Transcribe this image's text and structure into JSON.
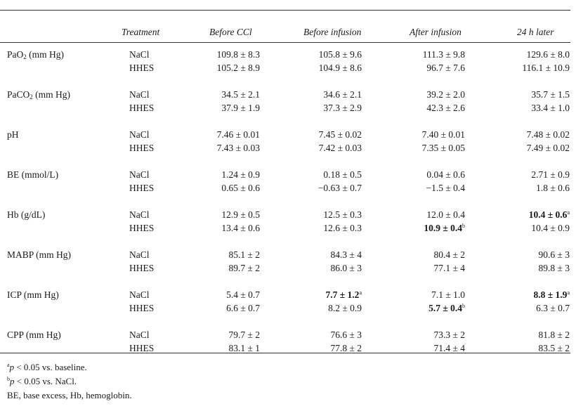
{
  "headers": {
    "treatment": "Treatment",
    "col1": "Before CCl",
    "col2": "Before infusion",
    "col3": "After infusion",
    "col4": "24 h later"
  },
  "rows": [
    {
      "param": "PaO",
      "sub": "2",
      "unit": " (mm Hg)",
      "nacl": [
        {
          "v": "109.8 ± 8.3"
        },
        {
          "v": "105.8 ± 9.6"
        },
        {
          "v": "111.3 ± 9.8"
        },
        {
          "v": "129.6 ± 8.0"
        }
      ],
      "hhes": [
        {
          "v": "105.2 ± 8.9"
        },
        {
          "v": "104.9 ± 8.6"
        },
        {
          "v": "96.7 ± 7.6"
        },
        {
          "v": "116.1 ± 10.9"
        }
      ]
    },
    {
      "param": "PaCO",
      "sub": "2",
      "unit": " (mm Hg)",
      "nacl": [
        {
          "v": "34.5 ± 2.1"
        },
        {
          "v": "34.6 ± 2.1"
        },
        {
          "v": "39.2 ± 2.0"
        },
        {
          "v": "35.7 ± 1.5"
        }
      ],
      "hhes": [
        {
          "v": "37.9 ± 1.9"
        },
        {
          "v": "37.3 ± 2.9"
        },
        {
          "v": "42.3 ± 2.6"
        },
        {
          "v": "33.4 ± 1.0"
        }
      ]
    },
    {
      "param": "pH",
      "sub": "",
      "unit": "",
      "nacl": [
        {
          "v": "7.46 ± 0.01"
        },
        {
          "v": "7.45 ± 0.02"
        },
        {
          "v": "7.40 ± 0.01"
        },
        {
          "v": "7.48 ± 0.02"
        }
      ],
      "hhes": [
        {
          "v": "7.43 ± 0.03"
        },
        {
          "v": "7.42 ± 0.03"
        },
        {
          "v": "7.35 ± 0.05"
        },
        {
          "v": "7.49 ± 0.02"
        }
      ]
    },
    {
      "param": "BE (mmol/L)",
      "sub": "",
      "unit": "",
      "nacl": [
        {
          "v": "1.24 ± 0.9"
        },
        {
          "v": "0.18 ± 0.5"
        },
        {
          "v": "0.04 ± 0.6"
        },
        {
          "v": "2.71 ± 0.9"
        }
      ],
      "hhes": [
        {
          "v": "0.65 ± 0.6"
        },
        {
          "v": "−0.63 ± 0.7"
        },
        {
          "v": "−1.5 ± 0.4"
        },
        {
          "v": "1.8 ± 0.6"
        }
      ]
    },
    {
      "param": "Hb (g/dL)",
      "sub": "",
      "unit": "",
      "nacl": [
        {
          "v": "12.9 ± 0.5"
        },
        {
          "v": "12.5 ± 0.3"
        },
        {
          "v": "12.0 ± 0.4"
        },
        {
          "v": "10.4 ± 0.6",
          "bold": true,
          "sup": "a"
        }
      ],
      "hhes": [
        {
          "v": "13.4 ± 0.6"
        },
        {
          "v": "12.6 ± 0.3"
        },
        {
          "v": "10.9 ± 0.4",
          "bold": true,
          "sup": "b"
        },
        {
          "v": "10.4 ± 0.9"
        }
      ]
    },
    {
      "param": "MABP (mm Hg)",
      "sub": "",
      "unit": "",
      "nacl": [
        {
          "v": "85.1 ± 2"
        },
        {
          "v": "84.3 ± 4"
        },
        {
          "v": "80.4 ± 2"
        },
        {
          "v": "90.6 ± 3"
        }
      ],
      "hhes": [
        {
          "v": "89.7 ± 2"
        },
        {
          "v": "86.0 ± 3"
        },
        {
          "v": "77.1 ± 4"
        },
        {
          "v": "89.8 ± 3"
        }
      ]
    },
    {
      "param": "ICP (mm Hg)",
      "sub": "",
      "unit": "",
      "nacl": [
        {
          "v": "5.4 ± 0.7"
        },
        {
          "v": "7.7 ± 1.2",
          "bold": true,
          "sup": "a"
        },
        {
          "v": "7.1 ± 1.0"
        },
        {
          "v": "8.8 ± 1.9",
          "bold": true,
          "sup": "a"
        }
      ],
      "hhes": [
        {
          "v": "6.6 ± 0.7"
        },
        {
          "v": "8.2 ± 0.9"
        },
        {
          "v": "5.7 ± 0.4",
          "bold": true,
          "sup": "b"
        },
        {
          "v": "6.3 ± 0.7"
        }
      ]
    },
    {
      "param": "CPP (mm Hg)",
      "sub": "",
      "unit": "",
      "nacl": [
        {
          "v": "79.7 ± 2"
        },
        {
          "v": "76.6 ± 3"
        },
        {
          "v": "73.3 ± 2"
        },
        {
          "v": "81.8 ± 2"
        }
      ],
      "hhes": [
        {
          "v": "83.1 ± 1"
        },
        {
          "v": "77.8 ± 2"
        },
        {
          "v": "71.4 ± 4"
        },
        {
          "v": "83.5 ± 2"
        }
      ]
    }
  ],
  "treatments": {
    "nacl": "NaCl",
    "hhes": "HHES"
  },
  "footnotes": [
    {
      "mark": "a",
      "p": "p",
      "text": " < 0.05 vs. baseline."
    },
    {
      "mark": "b",
      "p": "p",
      "text": " < 0.05 vs. NaCl."
    },
    {
      "mark": "",
      "p": "",
      "text": "BE, base excess, Hb, hemoglobin."
    }
  ]
}
